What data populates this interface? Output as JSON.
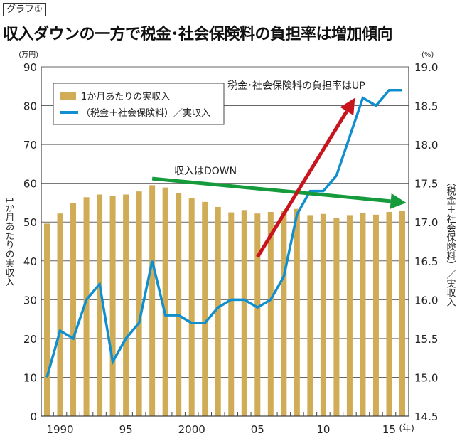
{
  "header": {
    "tag": "グラフ①",
    "title": "収入ダウンの一方で税金･社会保険料の負担率は増加傾向"
  },
  "chart_data": {
    "type": "bar+line",
    "x": [
      1989,
      1990,
      1991,
      1992,
      1993,
      1994,
      1995,
      1996,
      1997,
      1998,
      1999,
      2000,
      2001,
      2002,
      2003,
      2004,
      2005,
      2006,
      2007,
      2008,
      2009,
      2010,
      2011,
      2012,
      2013,
      2014,
      2015,
      2016
    ],
    "x_tick_labels": [
      {
        "year": 1990,
        "label": "1990"
      },
      {
        "year": 1995,
        "label": "95"
      },
      {
        "year": 2000,
        "label": "2000"
      },
      {
        "year": 2005,
        "label": "05"
      },
      {
        "year": 2010,
        "label": "10"
      },
      {
        "year": 2015,
        "label": "15"
      }
    ],
    "x_unit": "(年)",
    "left_axis": {
      "label": "1か月あたりの実収入",
      "unit": "(万円)",
      "range": [
        0,
        90
      ],
      "ticks": [
        0,
        10,
        20,
        30,
        40,
        50,
        60,
        70,
        80,
        90
      ]
    },
    "right_axis": {
      "label": "（税金＋社会保険料）／実収入",
      "unit": "(%)",
      "range": [
        14.5,
        19.0
      ],
      "ticks": [
        "14.5",
        "15.0",
        "15.5",
        "16.0",
        "16.5",
        "17.0",
        "17.5",
        "18.0",
        "18.5",
        "19.0"
      ]
    },
    "grid": true,
    "legend_placement": "top-left",
    "series": [
      {
        "name": "1か月あたりの実収入",
        "type": "bar",
        "axis": "left",
        "color": "#cfac55",
        "values": [
          49.6,
          52.2,
          54.9,
          56.4,
          57.1,
          56.7,
          57.1,
          57.9,
          59.5,
          58.9,
          57.5,
          56.2,
          55.2,
          53.9,
          52.5,
          53.1,
          52.2,
          52.6,
          52.8,
          53.4,
          51.8,
          52.1,
          51.0,
          51.8,
          52.4,
          51.9,
          52.6,
          52.9
        ]
      },
      {
        "name": "（税金＋社会保険料）／実収入",
        "type": "line",
        "axis": "right",
        "color": "#0f8fd0",
        "values": [
          15.0,
          15.6,
          15.5,
          16.0,
          16.2,
          15.2,
          15.5,
          15.7,
          16.5,
          15.8,
          15.8,
          15.7,
          15.7,
          15.9,
          16.0,
          16.0,
          15.9,
          16.0,
          16.3,
          17.1,
          17.4,
          17.4,
          17.6,
          18.1,
          18.6,
          18.5,
          18.7,
          18.7
        ]
      }
    ],
    "annotations": [
      {
        "text": "収入はDOWN",
        "color": "#159a3c",
        "axis": "left",
        "from": [
          1997,
          61.2
        ],
        "to": [
          2016.3,
          55.0
        ]
      },
      {
        "text": "税金･社会保険料の負担率はUP",
        "color": "#c8141c",
        "axis": "right",
        "from": [
          2005,
          16.55
        ],
        "to": [
          2012.4,
          18.6
        ]
      }
    ]
  }
}
